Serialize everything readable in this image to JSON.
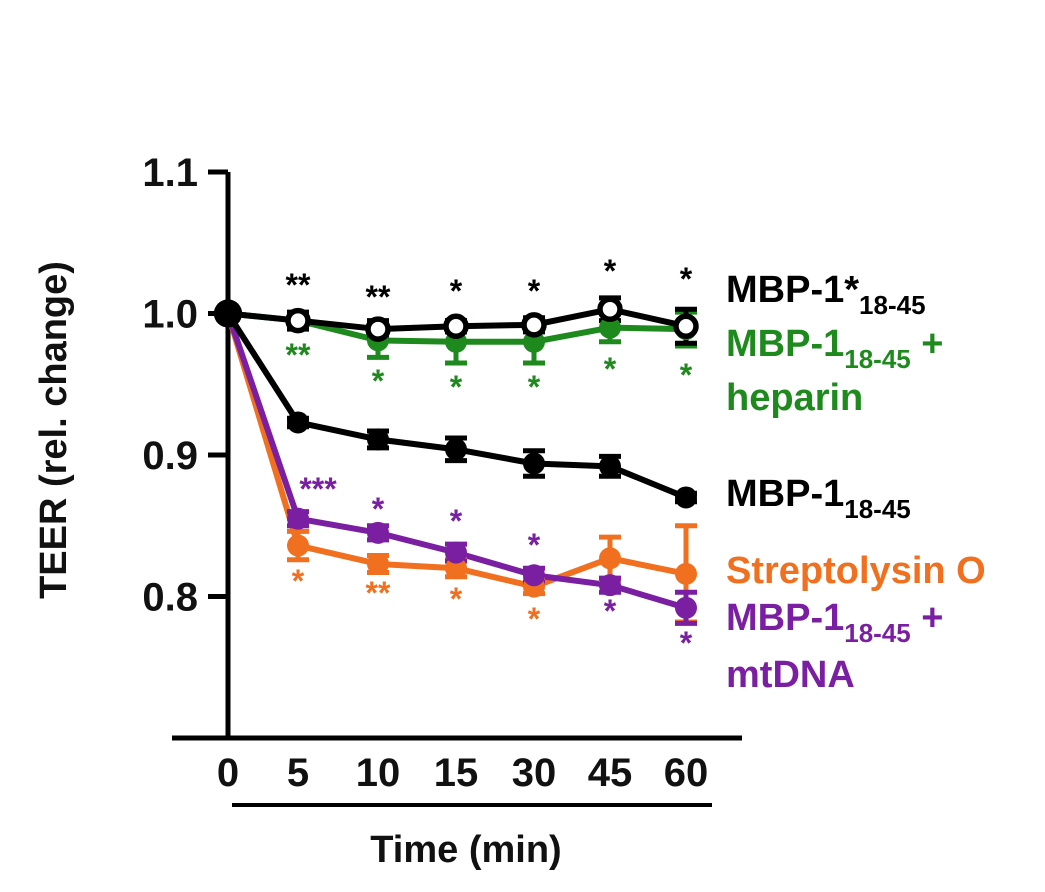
{
  "chart_data": {
    "type": "line",
    "title": "",
    "xlabel": "Time (min)",
    "ylabel": "TEER (rel. change)",
    "categories": [
      "0",
      "5",
      "10",
      "15",
      "30",
      "45",
      "60"
    ],
    "yticks": [
      "0.8",
      "0.9",
      "1.0",
      "1.1"
    ],
    "ylim": [
      0.7,
      1.1
    ],
    "grid": false,
    "legend_position": "right",
    "series": [
      {
        "name": "MBP-1*18-45",
        "label_main": "MBP-1*",
        "label_sub": "18-45",
        "label_suffix": "",
        "label_line2": "",
        "color": "#000000",
        "marker": "open-circle",
        "values": [
          1.0,
          0.995,
          0.989,
          0.991,
          0.992,
          1.003,
          0.991
        ],
        "errors": [
          0.0,
          0.006,
          0.006,
          0.004,
          0.005,
          0.008,
          0.012
        ],
        "annotations": [
          "",
          "**",
          "**",
          "*",
          "*",
          "*",
          "*"
        ],
        "annotation_side": "above"
      },
      {
        "name": "MBP-118-45 + heparin",
        "label_main": "MBP-1",
        "label_sub": "18-45",
        "label_suffix": " +",
        "label_line2": "heparin",
        "color": "#1e8a1e",
        "marker": "filled-circle",
        "values": [
          1.0,
          0.995,
          0.981,
          0.98,
          0.98,
          0.99,
          0.989
        ],
        "errors": [
          0.0,
          0.005,
          0.012,
          0.015,
          0.015,
          0.01,
          0.012
        ],
        "annotations": [
          "",
          "**",
          "*",
          "*",
          "*",
          "*",
          "*"
        ],
        "annotation_side": "below"
      },
      {
        "name": "MBP-118-45",
        "label_main": "MBP-1",
        "label_sub": "18-45",
        "label_suffix": "",
        "label_line2": "",
        "color": "#000000",
        "marker": "filled-circle",
        "values": [
          1.0,
          0.923,
          0.911,
          0.904,
          0.894,
          0.892,
          0.87
        ],
        "errors": [
          0.0,
          0.003,
          0.006,
          0.008,
          0.009,
          0.007,
          0.003
        ],
        "annotations": [
          "",
          "",
          "",
          "",
          "",
          "",
          ""
        ],
        "annotation_side": "none"
      },
      {
        "name": "Streptolysin O",
        "label_main": "Streptolysin O",
        "label_sub": "",
        "label_suffix": "",
        "label_line2": "",
        "color": "#f07020",
        "marker": "filled-circle",
        "values": [
          1.0,
          0.836,
          0.823,
          0.82,
          0.807,
          0.827,
          0.816
        ],
        "errors": [
          0.0,
          0.01,
          0.006,
          0.006,
          0.005,
          0.015,
          0.034
        ],
        "annotations": [
          "",
          "*",
          "**",
          "*",
          "*",
          "",
          ""
        ],
        "annotation_side": "below"
      },
      {
        "name": "MBP-118-45 + mtDNA",
        "label_main": "MBP-1",
        "label_sub": "18-45",
        "label_suffix": " +",
        "label_line2": "mtDNA",
        "color": "#7a1fa2",
        "marker": "filled-circle",
        "values": [
          1.0,
          0.855,
          0.845,
          0.831,
          0.815,
          0.808,
          0.792
        ],
        "errors": [
          0.0,
          0.005,
          0.005,
          0.006,
          0.005,
          0.005,
          0.011
        ],
        "annotations": [
          "",
          "***",
          "*",
          "*",
          "*",
          "*",
          "*"
        ],
        "annotation_side": "mixed"
      }
    ]
  }
}
